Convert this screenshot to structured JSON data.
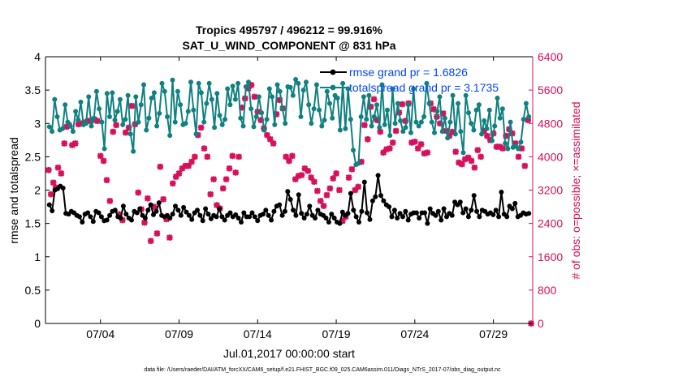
{
  "chart_data": {
    "type": "line",
    "title_line1": "Tropics 495797 / 496212 = 99.916%",
    "title_line2": "SAT_U_WIND_COMPONENT @ 831 hPa",
    "xlabel": "Jul.01,2017 00:00:00 start",
    "ylabel": "rmse and totalspread",
    "ylabel_right": "# of obs: o=possible; ×=assimilated",
    "footnote": "data file: /Users/raeder/DAI/ATM_forcXX/CAM6_setup/f.e21.FHIST_BGC.f09_025.CAM6assim.011/Diags_NTrS_2017-07/obs_diag_output.nc",
    "xlim": [
      0.5,
      31.5
    ],
    "x_ticks": [
      {
        "value": 4,
        "label": "07/04"
      },
      {
        "value": 9,
        "label": "07/09"
      },
      {
        "value": 14,
        "label": "07/14"
      },
      {
        "value": 19,
        "label": "07/19"
      },
      {
        "value": 24,
        "label": "07/24"
      },
      {
        "value": 29,
        "label": "07/29"
      }
    ],
    "ylim": [
      0,
      4
    ],
    "y_ticks": [
      "0",
      "0.5",
      "1",
      "1.5",
      "2",
      "2.5",
      "3",
      "3.5",
      "4"
    ],
    "ylim_right": [
      0,
      6400
    ],
    "y_ticks_right": [
      "0",
      "800",
      "1600",
      "2400",
      "3200",
      "4000",
      "4800",
      "5600",
      "6400"
    ],
    "colors": {
      "rmse": "#000000",
      "spread": "#108080",
      "obs": "#d6105a",
      "legend_text": "#0047ff"
    },
    "series": [
      {
        "name": "rmse grand pr = 1.6826",
        "legend": "rmse grand pr = 1.6826",
        "marker": "dot",
        "values": [
          1.78,
          1.69,
          2.0,
          2.02,
          2.06,
          2.03,
          1.65,
          1.64,
          1.68,
          1.66,
          1.62,
          1.6,
          1.52,
          1.64,
          1.66,
          1.6,
          1.53,
          1.68,
          1.66,
          1.6,
          1.54,
          1.55,
          1.62,
          1.68,
          1.7,
          1.6,
          1.58,
          1.76,
          1.64,
          1.58,
          1.55,
          1.68,
          1.66,
          1.72,
          1.62,
          1.58,
          1.7,
          1.78,
          1.63,
          1.68,
          1.81,
          1.62,
          1.6,
          1.62,
          1.58,
          1.64,
          1.76,
          1.7,
          1.62,
          1.74,
          1.67,
          1.62,
          1.56,
          1.66,
          1.7,
          1.62,
          1.54,
          1.72,
          1.64,
          1.57,
          1.62,
          1.6,
          1.72,
          1.6,
          1.55,
          1.62,
          1.66,
          1.6,
          1.63,
          1.58,
          1.52,
          1.66,
          1.6,
          1.6,
          1.66,
          1.6,
          1.54,
          1.62,
          1.64,
          1.7,
          1.62,
          1.55,
          1.68,
          1.76,
          1.78,
          1.62,
          1.68,
          1.98,
          1.86,
          1.7,
          1.62,
          1.93,
          1.65,
          1.58,
          1.64,
          1.76,
          1.62,
          1.58,
          1.7,
          1.64,
          1.62,
          1.58,
          1.52,
          1.64,
          1.58,
          1.52,
          1.5,
          1.67,
          1.62,
          1.65,
          1.95,
          1.7,
          1.6,
          1.52,
          1.68,
          2.12,
          1.66,
          1.56,
          1.84,
          1.9,
          2.22,
          1.92,
          1.84,
          1.78,
          1.75,
          1.6,
          1.7,
          1.58,
          1.65,
          1.6,
          1.68,
          1.55,
          1.64,
          1.66,
          1.66,
          1.58,
          1.66,
          1.66,
          1.5,
          1.72,
          1.65,
          1.62,
          1.68,
          1.55,
          1.72,
          1.6,
          1.65,
          1.62,
          1.82,
          1.78,
          1.82,
          1.66,
          1.72,
          1.6,
          1.7,
          1.92,
          1.68,
          1.6,
          1.7,
          1.68,
          1.64,
          1.66,
          1.63,
          1.7,
          1.6,
          1.97,
          1.64,
          1.6,
          1.76,
          1.72,
          1.8,
          1.6,
          1.62,
          1.66,
          1.64,
          1.65
        ]
      },
      {
        "name": "totalspread grand pr = 3.1735",
        "legend": "totalspread grand pr = 3.1735",
        "marker": "dot",
        "values": [
          2.95,
          2.88,
          3.36,
          3.1,
          2.9,
          2.92,
          3.28,
          3.02,
          2.96,
          2.88,
          3.18,
          3.05,
          3.32,
          2.98,
          3.0,
          3.4,
          2.96,
          3.08,
          3.48,
          3.22,
          3.02,
          2.62,
          3.45,
          3.1,
          3.46,
          3.05,
          3.18,
          3.36,
          2.98,
          3.06,
          3.42,
          2.84,
          2.58,
          3.4,
          3.02,
          3.28,
          3.58,
          2.9,
          3.08,
          3.38,
          3.46,
          2.96,
          3.15,
          3.6,
          3.48,
          3.1,
          2.82,
          3.65,
          3.02,
          3.48,
          3.28,
          2.98,
          3.0,
          3.18,
          3.62,
          3.2,
          2.84,
          3.6,
          3.46,
          3.02,
          3.3,
          3.6,
          3.36,
          2.94,
          3.45,
          3.12,
          2.98,
          3.06,
          3.52,
          3.28,
          3.56,
          3.36,
          3.6,
          3.08,
          2.96,
          3.55,
          3.62,
          3.22,
          2.95,
          3.1,
          3.4,
          3.16,
          2.9,
          3.06,
          3.52,
          3.4,
          2.98,
          3.58,
          3.48,
          3.22,
          3.0,
          3.55,
          3.54,
          3.42,
          3.66,
          3.6,
          3.1,
          3.5,
          3.62,
          3.28,
          3.0,
          3.22,
          3.58,
          3.2,
          2.96,
          3.05,
          3.48,
          3.3,
          3.08,
          3.42,
          3.38,
          2.9,
          3.6,
          2.92,
          3.52,
          3.06,
          2.6,
          2.38,
          2.4,
          3.1,
          3.4,
          3.06,
          3.42,
          2.96,
          3.1,
          3.28,
          2.94,
          3.58,
          2.98,
          3.2,
          2.82,
          3.52,
          3.0,
          3.3,
          3.04,
          2.88,
          2.94,
          3.28,
          2.86,
          3.52,
          3.02,
          2.96,
          3.02,
          3.1,
          3.6,
          3.3,
          3.02,
          2.86,
          3.18,
          3.4,
          2.88,
          3.08,
          2.78,
          3.02,
          3.42,
          2.84,
          3.3,
          2.88,
          2.56,
          3.42,
          3.16,
          3.0,
          2.9,
          3.2,
          3.28,
          2.84,
          3.04,
          2.92,
          3.2,
          2.74,
          2.96,
          3.38,
          3.08,
          3.22,
          2.7,
          2.62,
          3.02,
          2.64,
          2.66,
          2.62,
          2.72,
          3.06,
          3.3,
          3.1
        ]
      },
      {
        "name": "assimilated",
        "marker": "x",
        "axis": "right",
        "points": [
          [
            0.7,
            3680
          ],
          [
            0.85,
            3100
          ],
          [
            1.0,
            3380
          ],
          [
            1.15,
            3260
          ],
          [
            1.3,
            3740
          ],
          [
            1.5,
            3600
          ],
          [
            1.7,
            4320
          ],
          [
            1.85,
            4720
          ],
          [
            2.0,
            4760
          ],
          [
            2.2,
            4280
          ],
          [
            2.4,
            4320
          ],
          [
            2.6,
            4780
          ],
          [
            2.8,
            4800
          ],
          [
            3.0,
            4820
          ],
          [
            3.2,
            4860
          ],
          [
            3.4,
            4860
          ],
          [
            3.6,
            4900
          ],
          [
            3.8,
            4860
          ],
          [
            4.0,
            4020
          ],
          [
            4.2,
            3900
          ],
          [
            4.4,
            3440
          ],
          [
            4.6,
            2940
          ],
          [
            4.8,
            4600
          ],
          [
            5.0,
            4760
          ],
          [
            5.2,
            2620
          ],
          [
            5.4,
            2480
          ],
          [
            5.6,
            4580
          ],
          [
            5.8,
            4700
          ],
          [
            6.0,
            5220
          ],
          [
            6.2,
            4780
          ],
          [
            6.4,
            3140
          ],
          [
            6.6,
            2740
          ],
          [
            6.8,
            2420
          ],
          [
            7.0,
            3000
          ],
          [
            7.2,
            1980
          ],
          [
            7.4,
            2800
          ],
          [
            7.6,
            2160
          ],
          [
            7.8,
            3760
          ],
          [
            8.0,
            2980
          ],
          [
            8.2,
            2500
          ],
          [
            8.4,
            2060
          ],
          [
            8.6,
            3360
          ],
          [
            8.8,
            3520
          ],
          [
            9.0,
            3600
          ],
          [
            9.2,
            3720
          ],
          [
            9.4,
            3780
          ],
          [
            9.6,
            3780
          ],
          [
            9.8,
            3880
          ],
          [
            10.0,
            4000
          ],
          [
            10.2,
            4520
          ],
          [
            10.4,
            4700
          ],
          [
            10.6,
            4200
          ],
          [
            10.8,
            4000
          ],
          [
            11.0,
            3100
          ],
          [
            11.2,
            3460
          ],
          [
            11.4,
            2840
          ],
          [
            11.6,
            2760
          ],
          [
            11.8,
            3240
          ],
          [
            12.0,
            3460
          ],
          [
            12.2,
            3720
          ],
          [
            12.4,
            4020
          ],
          [
            12.6,
            3620
          ],
          [
            12.8,
            4000
          ],
          [
            13.0,
            5180
          ],
          [
            13.2,
            5400
          ],
          [
            13.4,
            5640
          ],
          [
            13.6,
            5720
          ],
          [
            13.8,
            5440
          ],
          [
            14.0,
            5080
          ],
          [
            14.2,
            4880
          ],
          [
            14.4,
            4680
          ],
          [
            14.6,
            4520
          ],
          [
            14.8,
            4420
          ],
          [
            15.0,
            4320
          ],
          [
            15.2,
            5020
          ],
          [
            15.4,
            5360
          ],
          [
            15.6,
            5160
          ],
          [
            15.8,
            4000
          ],
          [
            16.0,
            3900
          ],
          [
            16.2,
            4020
          ],
          [
            16.4,
            3460
          ],
          [
            16.6,
            3540
          ],
          [
            16.8,
            3560
          ],
          [
            17.0,
            3720
          ],
          [
            17.2,
            3660
          ],
          [
            17.4,
            3500
          ],
          [
            17.6,
            3400
          ],
          [
            17.8,
            3180
          ],
          [
            18.0,
            2940
          ],
          [
            18.2,
            2820
          ],
          [
            18.4,
            3080
          ],
          [
            18.6,
            3240
          ],
          [
            18.8,
            3480
          ],
          [
            19.0,
            3600
          ],
          [
            19.2,
            3200
          ],
          [
            19.4,
            2460
          ],
          [
            19.6,
            2560
          ],
          [
            19.8,
            3500
          ],
          [
            20.0,
            3700
          ],
          [
            20.2,
            3200
          ],
          [
            20.4,
            3280
          ],
          [
            20.6,
            3880
          ],
          [
            20.8,
            4760
          ],
          [
            21.0,
            4420
          ],
          [
            21.2,
            5200
          ],
          [
            21.4,
            5380
          ],
          [
            21.6,
            4880
          ],
          [
            21.8,
            4600
          ],
          [
            22.0,
            4100
          ],
          [
            22.2,
            4180
          ],
          [
            22.4,
            4200
          ],
          [
            22.6,
            4340
          ],
          [
            22.8,
            4620
          ],
          [
            23.0,
            5060
          ],
          [
            23.2,
            5260
          ],
          [
            23.4,
            4860
          ],
          [
            23.6,
            5280
          ],
          [
            23.8,
            4340
          ],
          [
            24.0,
            4360
          ],
          [
            24.2,
            4200
          ],
          [
            24.4,
            4300
          ],
          [
            24.6,
            4080
          ],
          [
            24.8,
            4100
          ],
          [
            25.0,
            5280
          ],
          [
            25.2,
            5140
          ],
          [
            25.4,
            4960
          ],
          [
            25.6,
            4800
          ],
          [
            25.8,
            5040
          ],
          [
            26.0,
            4620
          ],
          [
            26.2,
            4500
          ],
          [
            26.4,
            4600
          ],
          [
            26.6,
            4120
          ],
          [
            26.8,
            3860
          ],
          [
            27.0,
            3820
          ],
          [
            27.2,
            3940
          ],
          [
            27.4,
            3980
          ],
          [
            27.6,
            3900
          ],
          [
            27.8,
            3740
          ],
          [
            28.0,
            4160
          ],
          [
            28.2,
            4000
          ],
          [
            28.4,
            4620
          ],
          [
            28.6,
            4500
          ],
          [
            28.8,
            4400
          ],
          [
            29.0,
            4560
          ],
          [
            29.2,
            4240
          ],
          [
            29.4,
            4240
          ],
          [
            29.6,
            4200
          ],
          [
            29.8,
            4500
          ],
          [
            30.0,
            4660
          ],
          [
            30.2,
            4560
          ],
          [
            30.4,
            4320
          ],
          [
            30.6,
            4000
          ],
          [
            30.8,
            4200
          ],
          [
            31.0,
            3780
          ],
          [
            31.2,
            4880
          ],
          [
            31.4,
            0
          ]
        ]
      }
    ]
  }
}
